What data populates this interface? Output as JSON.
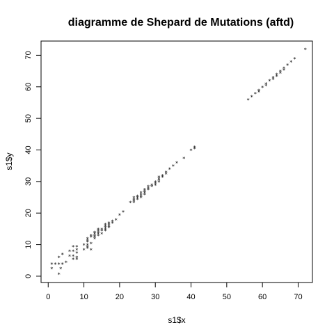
{
  "chart_data": {
    "type": "scatter",
    "title": "diagramme de Shepard de Mutations (aftd)",
    "xlabel": "s1$x",
    "ylabel": "s1$y",
    "xlim": [
      -2,
      74
    ],
    "ylim": [
      -2,
      74.5
    ],
    "xticks": [
      0,
      10,
      20,
      30,
      40,
      50,
      60,
      70
    ],
    "yticks": [
      0,
      10,
      20,
      30,
      40,
      50,
      60,
      70
    ],
    "grid": false,
    "legend": "none",
    "marker": "*",
    "points": [
      [
        1,
        2.5
      ],
      [
        1,
        4
      ],
      [
        2,
        4
      ],
      [
        3,
        0.8
      ],
      [
        3,
        4
      ],
      [
        3,
        6
      ],
      [
        3.5,
        2.5
      ],
      [
        4,
        4
      ],
      [
        4,
        7
      ],
      [
        5,
        4.5
      ],
      [
        6,
        6.5
      ],
      [
        6,
        8
      ],
      [
        7,
        5.5
      ],
      [
        7,
        6.5
      ],
      [
        7,
        8
      ],
      [
        7,
        9.5
      ],
      [
        8,
        5.5
      ],
      [
        8,
        6
      ],
      [
        8,
        7.5
      ],
      [
        8,
        8.5
      ],
      [
        8,
        9.5
      ],
      [
        10,
        8.5
      ],
      [
        10,
        10
      ],
      [
        11,
        9
      ],
      [
        11,
        9.5
      ],
      [
        11,
        10
      ],
      [
        11,
        11
      ],
      [
        11,
        11.5
      ],
      [
        11,
        12
      ],
      [
        12,
        8.5
      ],
      [
        12,
        10.5
      ],
      [
        12,
        12.5
      ],
      [
        12,
        13
      ],
      [
        13,
        12
      ],
      [
        13,
        12.5
      ],
      [
        13,
        13
      ],
      [
        13,
        13.5
      ],
      [
        13,
        14
      ],
      [
        14,
        13
      ],
      [
        14,
        13.5
      ],
      [
        14,
        14
      ],
      [
        14,
        14.5
      ],
      [
        14,
        15
      ],
      [
        15,
        13.5
      ],
      [
        15,
        14.5
      ],
      [
        15,
        15
      ],
      [
        16,
        14.5
      ],
      [
        16,
        15
      ],
      [
        16,
        15.5
      ],
      [
        16,
        16
      ],
      [
        16,
        16.5
      ],
      [
        17,
        15.5
      ],
      [
        17,
        16
      ],
      [
        17,
        16.5
      ],
      [
        17,
        17
      ],
      [
        18,
        17
      ],
      [
        18,
        17.5
      ],
      [
        19,
        18
      ],
      [
        20,
        19.5
      ],
      [
        21,
        20.5
      ],
      [
        23,
        23.5
      ],
      [
        24,
        23.5
      ],
      [
        24,
        24
      ],
      [
        24,
        24.5
      ],
      [
        24,
        25
      ],
      [
        25,
        24.5
      ],
      [
        25,
        25
      ],
      [
        25,
        25.5
      ],
      [
        26,
        25
      ],
      [
        26,
        25.5
      ],
      [
        26,
        26
      ],
      [
        26,
        26.5
      ],
      [
        27,
        26
      ],
      [
        27,
        26.5
      ],
      [
        27,
        27
      ],
      [
        27,
        27.5
      ],
      [
        28,
        27.5
      ],
      [
        28,
        28
      ],
      [
        28,
        28.5
      ],
      [
        29,
        28.5
      ],
      [
        29,
        29
      ],
      [
        30,
        29
      ],
      [
        30,
        29.5
      ],
      [
        30,
        30
      ],
      [
        31,
        30
      ],
      [
        31,
        30.5
      ],
      [
        31,
        31
      ],
      [
        31,
        31.5
      ],
      [
        32,
        31.5
      ],
      [
        32,
        32
      ],
      [
        33,
        32.5
      ],
      [
        33,
        33
      ],
      [
        34,
        34
      ],
      [
        35,
        35
      ],
      [
        36,
        36
      ],
      [
        38,
        37.5
      ],
      [
        40,
        40
      ],
      [
        41,
        40.5
      ],
      [
        41,
        41
      ],
      [
        56,
        56
      ],
      [
        57,
        57
      ],
      [
        58,
        58
      ],
      [
        59,
        58.5
      ],
      [
        59,
        59
      ],
      [
        60,
        60
      ],
      [
        61,
        60.5
      ],
      [
        61,
        61
      ],
      [
        62,
        62
      ],
      [
        63,
        62.5
      ],
      [
        63,
        63
      ],
      [
        64,
        63.5
      ],
      [
        64,
        64
      ],
      [
        65,
        64.5
      ],
      [
        65,
        65
      ],
      [
        66,
        65.5
      ],
      [
        66,
        66
      ],
      [
        67,
        67
      ],
      [
        68,
        68
      ],
      [
        69,
        69
      ],
      [
        72,
        72
      ]
    ]
  }
}
